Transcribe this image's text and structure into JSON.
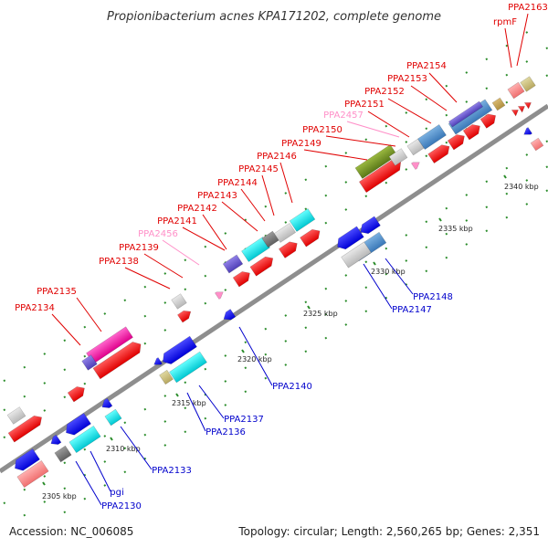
{
  "title": "Propionibacterium acnes KPA171202, complete genome",
  "footer": {
    "accession": "Accession: NC_006085",
    "summary": "Topology: circular; Length: 2,560,265 bp; Genes: 2,351"
  },
  "colors": {
    "label_red": "#e00000",
    "label_pink": "#ff8fc8",
    "label_blue": "#0000cc"
  },
  "ticks": [
    "2305 kbp",
    "2310 kbp",
    "2315 kbp",
    "2320 kbp",
    "2325 kbp",
    "2330 kbp",
    "2335 kbp",
    "2340 kbp"
  ],
  "labels_top": [
    {
      "name": "PPA2163",
      "color": "red"
    },
    {
      "name": "rpmF",
      "color": "red"
    },
    {
      "name": "PPA2154",
      "color": "red"
    },
    {
      "name": "PPA2153",
      "color": "red"
    },
    {
      "name": "PPA2152",
      "color": "red"
    },
    {
      "name": "PPA2151",
      "color": "red"
    },
    {
      "name": "PPA2457",
      "color": "pink"
    },
    {
      "name": "PPA2150",
      "color": "red"
    },
    {
      "name": "PPA2149",
      "color": "red"
    },
    {
      "name": "PPA2146",
      "color": "red"
    },
    {
      "name": "PPA2145",
      "color": "red"
    },
    {
      "name": "PPA2144",
      "color": "red"
    },
    {
      "name": "PPA2143",
      "color": "red"
    },
    {
      "name": "PPA2142",
      "color": "red"
    },
    {
      "name": "PPA2141",
      "color": "red"
    },
    {
      "name": "PPA2456",
      "color": "pink"
    },
    {
      "name": "PPA2139",
      "color": "red"
    },
    {
      "name": "PPA2138",
      "color": "red"
    },
    {
      "name": "PPA2135",
      "color": "red"
    },
    {
      "name": "PPA2134",
      "color": "red"
    }
  ],
  "labels_bottom": [
    {
      "name": "PPA2148",
      "color": "blue"
    },
    {
      "name": "PPA2147",
      "color": "blue"
    },
    {
      "name": "PPA2140",
      "color": "blue"
    },
    {
      "name": "PPA2137",
      "color": "blue"
    },
    {
      "name": "PPA2136",
      "color": "blue"
    },
    {
      "name": "PPA2133",
      "color": "blue"
    },
    {
      "name": "pgi",
      "color": "blue"
    },
    {
      "name": "PPA2130",
      "color": "blue"
    }
  ]
}
